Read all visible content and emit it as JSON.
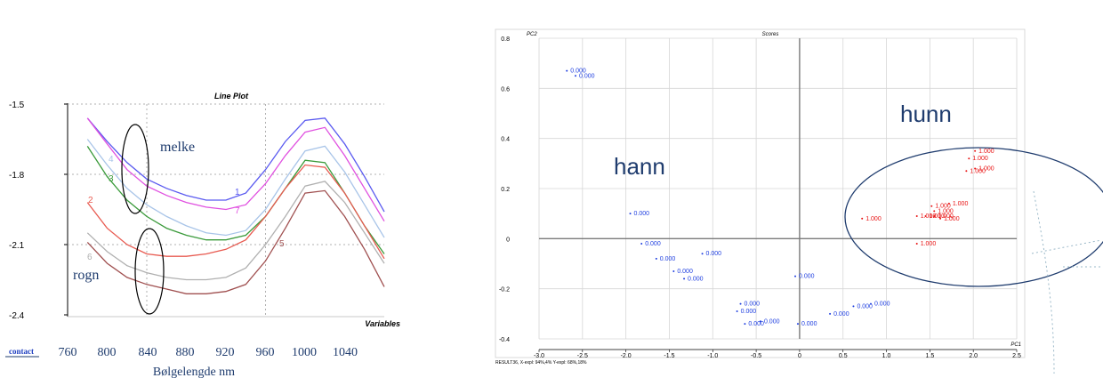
{
  "chart_data": [
    {
      "type": "line",
      "title": "Line Plot",
      "xlabel": "Bølgelengde nm",
      "x_axis_label_right": "Variables",
      "x_prefix_label": "contact",
      "y_ticks": [
        "-1.5",
        "-1.8",
        "-2.1",
        "-2.4"
      ],
      "x_ticks": [
        "760",
        "800",
        "840",
        "880",
        "920",
        "960",
        "1000",
        "1040"
      ],
      "ylim": [
        -2.4,
        -1.5
      ],
      "xlim": [
        760,
        1080
      ],
      "grid": true,
      "annotations": [
        "melke",
        "rogn"
      ],
      "series": [
        {
          "name": "1",
          "color": "#5a5af0",
          "x": [
            780,
            800,
            820,
            840,
            860,
            880,
            900,
            920,
            940,
            960,
            980,
            1000,
            1020,
            1040,
            1060,
            1080
          ],
          "values": [
            -1.56,
            -1.66,
            -1.75,
            -1.82,
            -1.86,
            -1.89,
            -1.91,
            -1.91,
            -1.88,
            -1.78,
            -1.66,
            -1.57,
            -1.56,
            -1.67,
            -1.81,
            -1.96
          ]
        },
        {
          "name": "7",
          "color": "#e050e0",
          "x": [
            780,
            800,
            820,
            840,
            860,
            880,
            900,
            920,
            940,
            960,
            980,
            1000,
            1020,
            1040,
            1060,
            1080
          ],
          "values": [
            -1.56,
            -1.67,
            -1.78,
            -1.85,
            -1.89,
            -1.92,
            -1.94,
            -1.95,
            -1.93,
            -1.84,
            -1.72,
            -1.62,
            -1.6,
            -1.72,
            -1.86,
            -2.0
          ]
        },
        {
          "name": "4",
          "color": "#a8c4e8",
          "x": [
            780,
            800,
            820,
            840,
            860,
            880,
            900,
            920,
            940,
            960,
            980,
            1000,
            1020,
            1040,
            1060,
            1080
          ],
          "values": [
            -1.65,
            -1.76,
            -1.86,
            -1.93,
            -1.98,
            -2.02,
            -2.05,
            -2.06,
            -2.04,
            -1.95,
            -1.82,
            -1.7,
            -1.68,
            -1.79,
            -1.93,
            -2.07
          ]
        },
        {
          "name": "3",
          "color": "#3a9a3a",
          "x": [
            780,
            800,
            820,
            840,
            860,
            880,
            900,
            920,
            940,
            960,
            980,
            1000,
            1020,
            1040,
            1060,
            1080
          ],
          "values": [
            -1.68,
            -1.81,
            -1.91,
            -1.98,
            -2.03,
            -2.06,
            -2.08,
            -2.08,
            -2.06,
            -1.98,
            -1.86,
            -1.74,
            -1.75,
            -1.88,
            -2.02,
            -2.14
          ]
        },
        {
          "name": "2",
          "color": "#e85a50",
          "x": [
            780,
            800,
            820,
            840,
            860,
            880,
            900,
            920,
            940,
            960,
            980,
            1000,
            1020,
            1040,
            1060,
            1080
          ],
          "values": [
            -1.92,
            -2.03,
            -2.1,
            -2.14,
            -2.15,
            -2.15,
            -2.14,
            -2.12,
            -2.08,
            -1.98,
            -1.86,
            -1.76,
            -1.77,
            -1.88,
            -2.02,
            -2.16
          ]
        },
        {
          "name": "6",
          "color": "#b0b0b0",
          "x": [
            780,
            800,
            820,
            840,
            860,
            880,
            900,
            920,
            940,
            960,
            980,
            1000,
            1020,
            1040,
            1060,
            1080
          ],
          "values": [
            -2.05,
            -2.13,
            -2.19,
            -2.22,
            -2.24,
            -2.25,
            -2.25,
            -2.24,
            -2.2,
            -2.1,
            -1.98,
            -1.85,
            -1.83,
            -1.92,
            -2.05,
            -2.18
          ]
        },
        {
          "name": "5",
          "color": "#a05050",
          "x": [
            780,
            800,
            820,
            840,
            860,
            880,
            900,
            920,
            940,
            960,
            980,
            1000,
            1020,
            1040,
            1060,
            1080
          ],
          "values": [
            -2.09,
            -2.18,
            -2.24,
            -2.27,
            -2.29,
            -2.31,
            -2.31,
            -2.3,
            -2.27,
            -2.17,
            -2.03,
            -1.88,
            -1.87,
            -1.98,
            -2.12,
            -2.28
          ]
        }
      ]
    },
    {
      "type": "scatter",
      "title": "Scores",
      "xlabel": "PC1",
      "ylabel": "PC2",
      "footer": "RESULT36, X-expl: 94%,4%  Y-expl: 68%,18%",
      "xlim": [
        -3.0,
        2.5
      ],
      "ylim": [
        -0.4,
        0.8
      ],
      "x_ticks": [
        "-3.0",
        "-2.5",
        "-2.0",
        "-1.5",
        "-1.0",
        "-0.5",
        "0",
        "0.5",
        "1.0",
        "1.5",
        "2.0",
        "2.5"
      ],
      "y_ticks": [
        "0.8",
        "0.6",
        "0.4",
        "0.2",
        "0",
        "-0.2",
        "-0.4"
      ],
      "grid": true,
      "annotations": [
        "hann",
        "hunn"
      ],
      "series": [
        {
          "name": "0.000",
          "color": "#1f3fe0",
          "label": "0.000",
          "points": [
            [
              -2.68,
              0.67
            ],
            [
              -2.58,
              0.65
            ],
            [
              -1.95,
              0.1
            ],
            [
              -1.82,
              -0.02
            ],
            [
              -1.65,
              -0.08
            ],
            [
              -1.45,
              -0.13
            ],
            [
              -1.33,
              -0.16
            ],
            [
              -1.12,
              -0.06
            ],
            [
              -0.68,
              -0.26
            ],
            [
              -0.72,
              -0.29
            ],
            [
              -0.63,
              -0.34
            ],
            [
              -0.45,
              -0.33
            ],
            [
              -0.05,
              -0.15
            ],
            [
              -0.02,
              -0.34
            ],
            [
              0.35,
              -0.3
            ],
            [
              0.62,
              -0.27
            ],
            [
              0.82,
              -0.26
            ]
          ]
        },
        {
          "name": "1.000",
          "color": "#e81414",
          "label": "1.000",
          "points": [
            [
              2.02,
              0.35
            ],
            [
              1.95,
              0.32
            ],
            [
              2.02,
              0.28
            ],
            [
              1.92,
              0.27
            ],
            [
              1.72,
              0.14
            ],
            [
              1.52,
              0.13
            ],
            [
              1.55,
              0.11
            ],
            [
              1.45,
              0.09
            ],
            [
              1.55,
              0.09
            ],
            [
              1.62,
              0.08
            ],
            [
              1.35,
              0.09
            ],
            [
              0.72,
              0.08
            ],
            [
              1.35,
              -0.02
            ]
          ]
        }
      ]
    }
  ]
}
